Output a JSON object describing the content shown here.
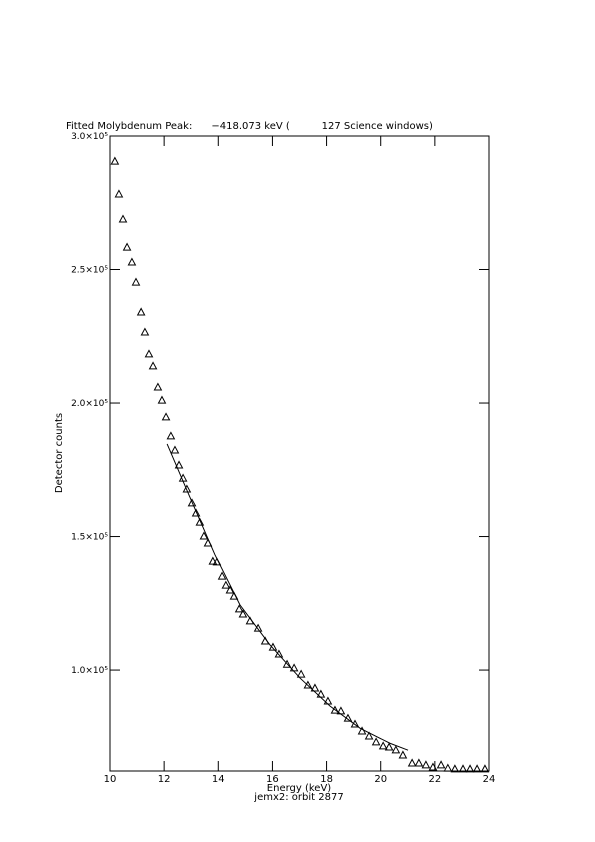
{
  "chart_data": {
    "type": "scatter",
    "title": "Fitted Molybdenum Peak:      −418.073 keV (          127 Science windows)",
    "xlabel": "Energy (keV)",
    "subtitle": "jemx2: orbit 2877",
    "ylabel": "Detector counts",
    "xlim": [
      10,
      24
    ],
    "ylim": [
      62200,
      300000
    ],
    "xticks": [
      10,
      12,
      14,
      16,
      18,
      20,
      22,
      24
    ],
    "yticks": [
      {
        "value": 100000,
        "label": "1.0×10⁵"
      },
      {
        "value": 150000,
        "label": "1.5×10⁵"
      },
      {
        "value": 200000,
        "label": "2.0×10⁵"
      },
      {
        "value": 250000,
        "label": "2.5×10⁵"
      },
      {
        "value": 300000,
        "label": "3.0×10⁵"
      }
    ],
    "series": [
      {
        "marker": "triangle",
        "color": "#000000",
        "x": [
          10.18,
          10.33,
          10.48,
          10.63,
          10.81,
          10.96,
          11.15,
          11.29,
          11.44,
          11.59,
          11.77,
          11.92,
          12.07,
          12.25,
          12.4,
          12.55,
          12.7,
          12.84,
          13.03,
          13.18,
          13.32,
          13.47,
          13.62,
          13.8,
          13.95,
          14.14,
          14.28,
          14.43,
          14.58,
          14.77,
          14.91,
          15.17,
          15.47,
          15.73,
          16.02,
          16.24,
          16.54,
          16.8,
          17.06,
          17.31,
          17.57,
          17.79,
          18.05,
          18.31,
          18.53,
          18.79,
          19.05,
          19.31,
          19.57,
          19.83,
          20.09,
          20.31,
          20.56,
          20.82,
          21.16,
          21.41,
          21.67,
          21.93,
          22.23,
          22.48,
          22.74,
          23.04,
          23.3,
          23.56,
          23.85
        ],
        "values": [
          290600,
          278300,
          268900,
          258400,
          252800,
          245300,
          234100,
          226600,
          218400,
          213900,
          206000,
          201100,
          194800,
          187700,
          182400,
          176800,
          171900,
          167800,
          162600,
          158800,
          155400,
          150200,
          147600,
          140800,
          140500,
          135200,
          131800,
          130000,
          127700,
          122900,
          121000,
          118400,
          115700,
          110900,
          108600,
          106000,
          102200,
          100800,
          98500,
          94400,
          93300,
          91000,
          88400,
          85000,
          84700,
          82000,
          79800,
          77200,
          75300,
          73100,
          71600,
          71200,
          70100,
          68200,
          65200,
          65200,
          64500,
          63700,
          64500,
          63300,
          63000,
          63000,
          63000,
          63000,
          63000
        ]
      },
      {
        "marker": "line",
        "color": "#000000",
        "x": [
          12.11,
          12.95,
          13.88,
          14.8,
          15.91,
          17.02,
          18.13,
          19.24,
          20.34,
          21.01
        ],
        "values": [
          184700,
          164800,
          143100,
          124400,
          109400,
          97000,
          86500,
          78200,
          72600,
          70000
        ]
      }
    ]
  }
}
